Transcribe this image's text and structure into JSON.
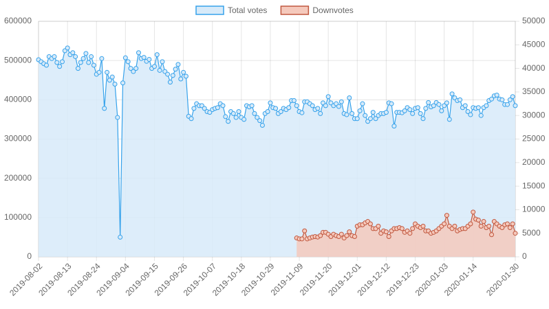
{
  "chart_data": {
    "type": "line",
    "categories": [
      "2019-08-02",
      null,
      null,
      null,
      null,
      null,
      null,
      null,
      null,
      null,
      null,
      "2019-08-13",
      null,
      null,
      null,
      null,
      null,
      null,
      null,
      null,
      null,
      null,
      "2019-08-24",
      null,
      null,
      null,
      null,
      null,
      null,
      null,
      null,
      null,
      null,
      "2019-09-04",
      null,
      null,
      null,
      null,
      null,
      null,
      null,
      null,
      null,
      null,
      "2019-09-15",
      null,
      null,
      null,
      null,
      null,
      null,
      null,
      null,
      null,
      null,
      "2019-09-26",
      null,
      null,
      null,
      null,
      null,
      null,
      null,
      null,
      null,
      null,
      "2019-10-07",
      null,
      null,
      null,
      null,
      null,
      null,
      null,
      null,
      null,
      null,
      "2019-10-18",
      null,
      null,
      null,
      null,
      null,
      null,
      null,
      null,
      null,
      null,
      "2019-10-29",
      null,
      null,
      null,
      null,
      null,
      null,
      null,
      null,
      null,
      null,
      "2019-11-09",
      null,
      null,
      null,
      null,
      null,
      null,
      null,
      null,
      null,
      null,
      "2019-11-20",
      null,
      null,
      null,
      null,
      null,
      null,
      null,
      null,
      null,
      null,
      "2019-12-01",
      null,
      null,
      null,
      null,
      null,
      null,
      null,
      null,
      null,
      null,
      "2019-12-12",
      null,
      null,
      null,
      null,
      null,
      null,
      null,
      null,
      null,
      null,
      "2019-12-23",
      null,
      null,
      null,
      null,
      null,
      null,
      null,
      null,
      null,
      null,
      "2020-01-03",
      null,
      null,
      null,
      null,
      null,
      null,
      null,
      null,
      null,
      null,
      "2020-01-14",
      null,
      null,
      null,
      null,
      null,
      null,
      null,
      null,
      null,
      null,
      null,
      null,
      null,
      null,
      null,
      "2020-01-30"
    ],
    "series": [
      {
        "name": "Total votes",
        "color": "#36a2eb",
        "fill": "#d7eaf9",
        "axis": "y",
        "values": [
          502000,
          497000,
          492000,
          488000,
          510000,
          505000,
          510000,
          495000,
          485000,
          497000,
          525000,
          532000,
          515000,
          520000,
          510000,
          480000,
          495000,
          505000,
          518000,
          495000,
          510000,
          488000,
          465000,
          470000,
          505000,
          378000,
          470000,
          450000,
          458000,
          440000,
          355000,
          50000,
          443000,
          507000,
          497000,
          480000,
          472000,
          480000,
          520000,
          505000,
          508000,
          498000,
          503000,
          480000,
          485000,
          515000,
          475000,
          497000,
          472000,
          465000,
          445000,
          462000,
          478000,
          490000,
          453000,
          470000,
          460000,
          358000,
          352000,
          378000,
          390000,
          385000,
          385000,
          378000,
          370000,
          368000,
          375000,
          378000,
          380000,
          390000,
          385000,
          357000,
          345000,
          370000,
          365000,
          355000,
          370000,
          355000,
          350000,
          385000,
          382000,
          385000,
          365000,
          355000,
          347000,
          335000,
          365000,
          370000,
          392000,
          380000,
          378000,
          365000,
          370000,
          378000,
          375000,
          380000,
          398000,
          398000,
          385000,
          370000,
          367000,
          395000,
          395000,
          390000,
          385000,
          375000,
          378000,
          365000,
          392000,
          385000,
          408000,
          392000,
          385000,
          390000,
          383000,
          395000,
          365000,
          362000,
          405000,
          365000,
          352000,
          352000,
          372000,
          390000,
          360000,
          345000,
          352000,
          368000,
          352000,
          360000,
          365000,
          365000,
          368000,
          392000,
          390000,
          333000,
          368000,
          368000,
          367000,
          372000,
          380000,
          375000,
          365000,
          378000,
          380000,
          365000,
          352000,
          378000,
          393000,
          382000,
          385000,
          393000,
          388000,
          372000,
          385000,
          392000,
          350000,
          415000,
          405000,
          398000,
          400000,
          380000,
          385000,
          370000,
          362000,
          380000,
          378000,
          380000,
          360000,
          380000,
          385000,
          398000,
          402000,
          410000,
          412000,
          402000,
          400000,
          388000,
          388000,
          400000,
          408000,
          385000
        ]
      },
      {
        "name": "Downvotes",
        "color": "#c0573e",
        "fill": "#f5c9bc",
        "axis": "y2",
        "values": [
          null,
          null,
          null,
          null,
          null,
          null,
          null,
          null,
          null,
          null,
          null,
          null,
          null,
          null,
          null,
          null,
          null,
          null,
          null,
          null,
          null,
          null,
          null,
          null,
          null,
          null,
          null,
          null,
          null,
          null,
          null,
          null,
          null,
          null,
          null,
          null,
          null,
          null,
          null,
          null,
          null,
          null,
          null,
          null,
          null,
          null,
          null,
          null,
          null,
          null,
          null,
          null,
          null,
          null,
          null,
          null,
          null,
          null,
          null,
          null,
          null,
          null,
          null,
          null,
          null,
          null,
          null,
          null,
          null,
          null,
          null,
          null,
          null,
          null,
          null,
          null,
          null,
          null,
          null,
          null,
          null,
          null,
          null,
          null,
          null,
          null,
          null,
          null,
          null,
          null,
          null,
          null,
          null,
          null,
          null,
          null,
          null,
          null,
          4000,
          3800,
          3800,
          5500,
          3800,
          4000,
          4200,
          4300,
          4200,
          4500,
          5200,
          5200,
          4800,
          4300,
          4800,
          4500,
          4300,
          4800,
          4000,
          4500,
          5300,
          4500,
          4300,
          6500,
          6800,
          6800,
          7200,
          7500,
          7000,
          6000,
          6000,
          6500,
          5000,
          5500,
          5300,
          4300,
          5500,
          6000,
          6000,
          6200,
          6000,
          5200,
          5500,
          5000,
          6000,
          7000,
          6500,
          6200,
          6500,
          5500,
          5500,
          5000,
          5200,
          5500,
          6000,
          6500,
          7000,
          8800,
          6500,
          6000,
          6500,
          5500,
          5800,
          6000,
          6000,
          6500,
          7000,
          9500,
          8000,
          7800,
          6500,
          7500,
          6200,
          6500,
          4700,
          7500,
          7000,
          6500,
          6200,
          6800,
          7000,
          6200,
          7000,
          5000
        ]
      }
    ],
    "ylim": [
      0,
      600000
    ],
    "yticks": [
      0,
      100000,
      200000,
      300000,
      400000,
      500000,
      600000
    ],
    "y2lim": [
      0,
      50000
    ],
    "y2ticks": [
      0,
      5000,
      10000,
      15000,
      20000,
      25000,
      30000,
      35000,
      40000,
      45000,
      50000
    ],
    "grid": true
  }
}
